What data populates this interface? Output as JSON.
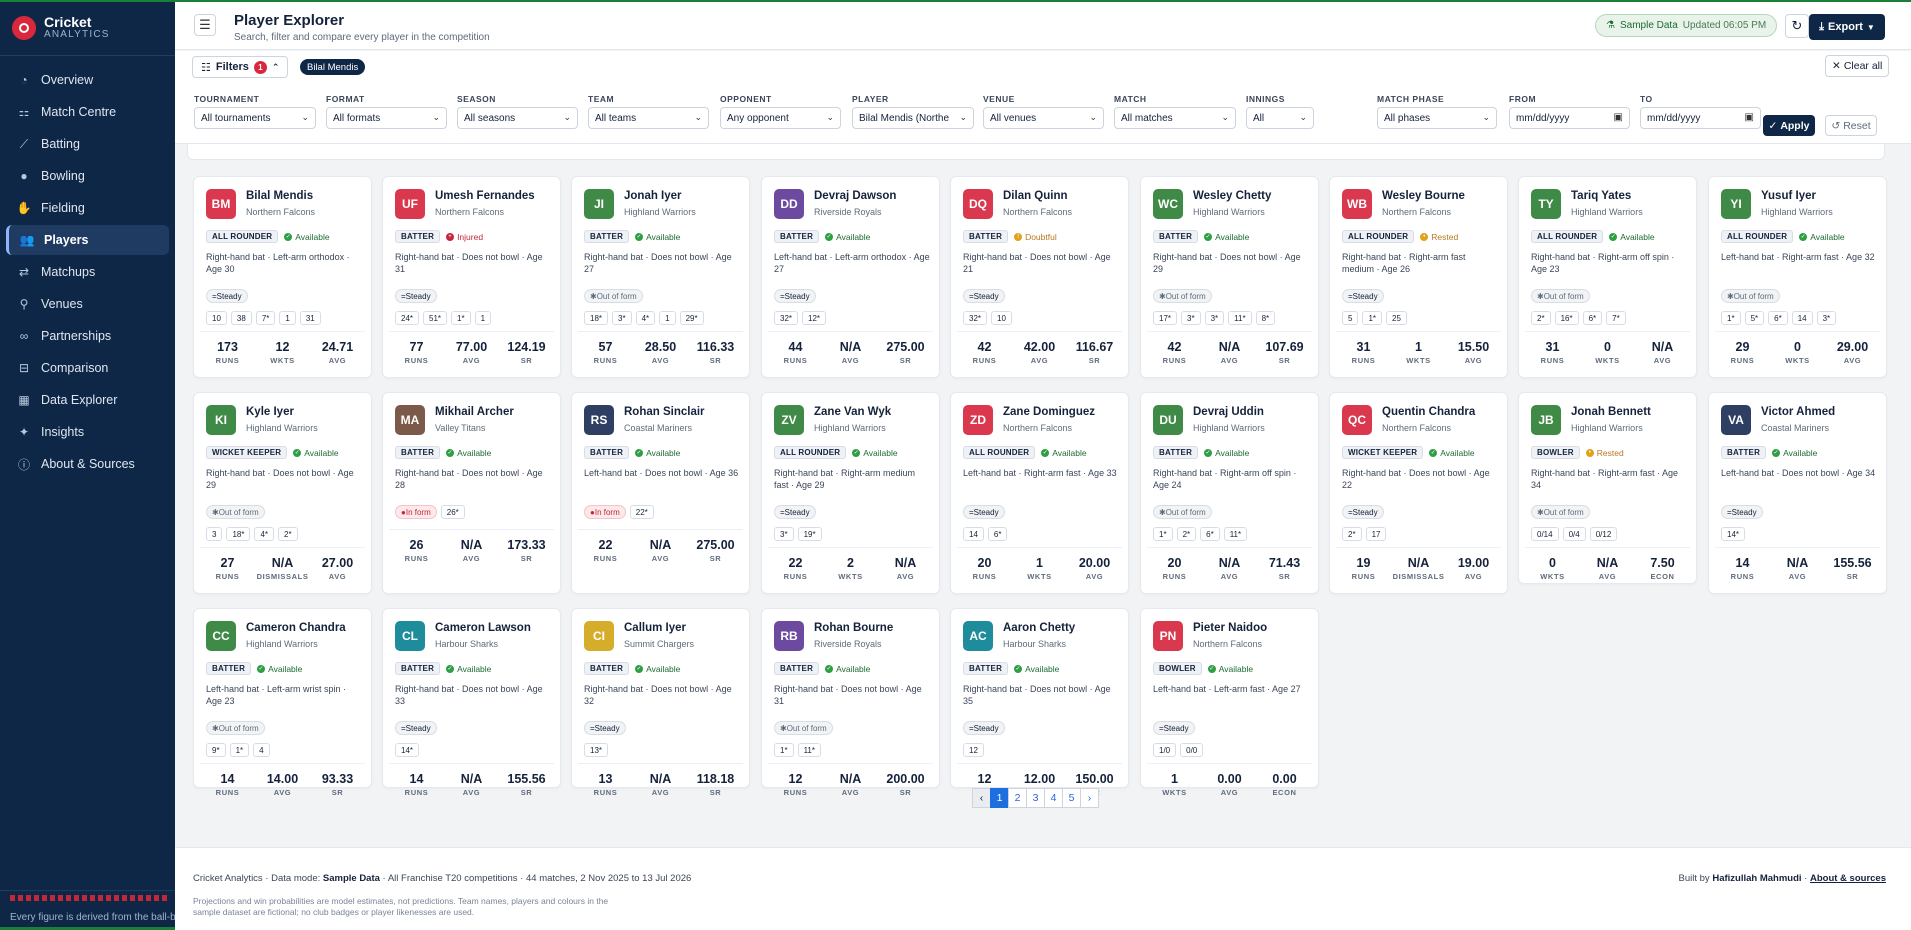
{
  "app": {
    "brand_name": "Cricket",
    "brand_sub": "ANALYTICS"
  },
  "sidebar": {
    "items": [
      {
        "label": "Overview",
        "icon": "gauge-icon",
        "glyph": "◔",
        "active": false
      },
      {
        "label": "Match Centre",
        "icon": "scoreboard-icon",
        "glyph": "⚏",
        "active": false
      },
      {
        "label": "Batting",
        "icon": "bat-icon",
        "glyph": "⟋",
        "active": false
      },
      {
        "label": "Bowling",
        "icon": "ball-icon",
        "glyph": "●",
        "active": false
      },
      {
        "label": "Fielding",
        "icon": "glove-icon",
        "glyph": "✋",
        "active": false
      },
      {
        "label": "Players",
        "icon": "users-icon",
        "glyph": "👥",
        "active": true
      },
      {
        "label": "Matchups",
        "icon": "versus-icon",
        "glyph": "⇄",
        "active": false
      },
      {
        "label": "Venues",
        "icon": "location-pin-icon",
        "glyph": "⚲",
        "active": false
      },
      {
        "label": "Partnerships",
        "icon": "link-icon",
        "glyph": "∞",
        "active": false
      },
      {
        "label": "Comparison",
        "icon": "compare-icon",
        "glyph": "⊟",
        "active": false
      },
      {
        "label": "Data Explorer",
        "icon": "table-icon",
        "glyph": "▦",
        "active": false
      },
      {
        "label": "Insights",
        "icon": "lightbulb-icon",
        "glyph": "✦",
        "active": false
      },
      {
        "label": "About & Sources",
        "icon": "info-icon",
        "glyph": "ⓘ",
        "active": false
      }
    ],
    "footer_text": "Every figure is derived from the ball-by-"
  },
  "header": {
    "title": "Player Explorer",
    "subtitle": "Search, filter and compare every player in the competition",
    "sample_label": "Sample Data",
    "updated": "Updated 06:05 PM",
    "export_label": "Export"
  },
  "filters": {
    "toggle_label": "Filters",
    "count": "1",
    "active_chip": "Bilal Mendis",
    "clear_label": "Clear all",
    "fields": [
      {
        "label": "TOURNAMENT",
        "value": "All tournaments",
        "type": "select"
      },
      {
        "label": "FORMAT",
        "value": "All formats",
        "type": "select"
      },
      {
        "label": "SEASON",
        "value": "All seasons",
        "type": "select"
      },
      {
        "label": "TEAM",
        "value": "All teams",
        "type": "select"
      },
      {
        "label": "OPPONENT",
        "value": "Any opponent",
        "type": "select"
      },
      {
        "label": "PLAYER",
        "value": "Bilal Mendis (Northe",
        "type": "select"
      },
      {
        "label": "VENUE",
        "value": "All venues",
        "type": "select"
      },
      {
        "label": "MATCH",
        "value": "All matches",
        "type": "select"
      },
      {
        "label": "INNINGS",
        "value": "All",
        "type": "select"
      },
      {
        "label": "MATCH PHASE",
        "value": "All phases",
        "type": "select"
      },
      {
        "label": "FROM",
        "value": "mm/dd/yyyy",
        "type": "date"
      },
      {
        "label": "TO",
        "value": "mm/dd/yyyy",
        "type": "date"
      }
    ],
    "apply_label": "Apply",
    "reset_label": "Reset"
  },
  "colors": {
    "sidebar": "#0f2747",
    "accent_red": "#d9283b",
    "accent_blue": "#1d6fe0",
    "available": "#2f9e44",
    "injured": "#c2283a",
    "caution": "#e0a21a"
  },
  "players": [
    {
      "initials": "BM",
      "name": "Bilal Mendis",
      "team": "Northern Falcons",
      "color": "#d9384f",
      "role": "ALL ROUNDER",
      "status": "Available",
      "desc": "Right-hand bat · Left-arm orthodox · Age 30",
      "form": "Steady",
      "tags": [
        "10",
        "38",
        "7*",
        "1",
        "31"
      ],
      "stats": [
        [
          "173",
          "RUNS"
        ],
        [
          "12",
          "WKTS"
        ],
        [
          "24.71",
          "AVG"
        ]
      ]
    },
    {
      "initials": "UF",
      "name": "Umesh Fernandes",
      "team": "Northern Falcons",
      "color": "#d9384f",
      "role": "BATTER",
      "status": "Injured",
      "desc": "Right-hand bat · Does not bowl · Age 31",
      "form": "Steady",
      "tags": [
        "24*",
        "51*",
        "1*",
        "1"
      ],
      "stats": [
        [
          "77",
          "RUNS"
        ],
        [
          "77.00",
          "AVG"
        ],
        [
          "124.19",
          "SR"
        ]
      ]
    },
    {
      "initials": "JI",
      "name": "Jonah Iyer",
      "team": "Highland Warriors",
      "color": "#3f8a46",
      "role": "BATTER",
      "status": "Available",
      "desc": "Right-hand bat · Does not bowl · Age 27",
      "form": "Out of form",
      "tags": [
        "18*",
        "3*",
        "4*",
        "1",
        "29*"
      ],
      "stats": [
        [
          "57",
          "RUNS"
        ],
        [
          "28.50",
          "AVG"
        ],
        [
          "116.33",
          "SR"
        ]
      ]
    },
    {
      "initials": "DD",
      "name": "Devraj Dawson",
      "team": "Riverside Royals",
      "color": "#6c4aa0",
      "role": "BATTER",
      "status": "Available",
      "desc": "Left-hand bat · Left-arm orthodox · Age 27",
      "form": "Steady",
      "tags": [
        "32*",
        "12*"
      ],
      "stats": [
        [
          "44",
          "RUNS"
        ],
        [
          "N/A",
          "AVG"
        ],
        [
          "275.00",
          "SR"
        ]
      ]
    },
    {
      "initials": "DQ",
      "name": "Dilan Quinn",
      "team": "Northern Falcons",
      "color": "#d9384f",
      "role": "BATTER",
      "status": "Doubtful",
      "desc": "Right-hand bat · Does not bowl · Age 21",
      "form": "Steady",
      "tags": [
        "32*",
        "10"
      ],
      "stats": [
        [
          "42",
          "RUNS"
        ],
        [
          "42.00",
          "AVG"
        ],
        [
          "116.67",
          "SR"
        ]
      ]
    },
    {
      "initials": "WC",
      "name": "Wesley Chetty",
      "team": "Highland Warriors",
      "color": "#3f8a46",
      "role": "BATTER",
      "status": "Available",
      "desc": "Right-hand bat · Does not bowl · Age 29",
      "form": "Out of form",
      "tags": [
        "17*",
        "3*",
        "3*",
        "11*",
        "8*"
      ],
      "stats": [
        [
          "42",
          "RUNS"
        ],
        [
          "N/A",
          "AVG"
        ],
        [
          "107.69",
          "SR"
        ]
      ]
    },
    {
      "initials": "WB",
      "name": "Wesley Bourne",
      "team": "Northern Falcons",
      "color": "#d9384f",
      "role": "ALL ROUNDER",
      "status": "Rested",
      "desc": "Right-hand bat · Right-arm fast medium · Age 26",
      "form": "Steady",
      "tags": [
        "5",
        "1*",
        "25"
      ],
      "stats": [
        [
          "31",
          "RUNS"
        ],
        [
          "1",
          "WKTS"
        ],
        [
          "15.50",
          "AVG"
        ]
      ]
    },
    {
      "initials": "TY",
      "name": "Tariq Yates",
      "team": "Highland Warriors",
      "color": "#3f8a46",
      "role": "ALL ROUNDER",
      "status": "Available",
      "desc": "Right-hand bat · Right-arm off spin · Age 23",
      "form": "Out of form",
      "tags": [
        "2*",
        "16*",
        "6*",
        "7*"
      ],
      "stats": [
        [
          "31",
          "RUNS"
        ],
        [
          "0",
          "WKTS"
        ],
        [
          "N/A",
          "AVG"
        ]
      ]
    },
    {
      "initials": "YI",
      "name": "Yusuf Iyer",
      "team": "Highland Warriors",
      "color": "#3f8a46",
      "role": "ALL ROUNDER",
      "status": "Available",
      "desc": "Left-hand bat · Right-arm fast · Age 32",
      "form": "Out of form",
      "tags": [
        "1*",
        "5*",
        "6*",
        "14",
        "3*"
      ],
      "stats": [
        [
          "29",
          "RUNS"
        ],
        [
          "0",
          "WKTS"
        ],
        [
          "29.00",
          "AVG"
        ]
      ]
    },
    {
      "initials": "KI",
      "name": "Kyle Iyer",
      "team": "Highland Warriors",
      "color": "#3f8a46",
      "role": "WICKET KEEPER",
      "status": "Available",
      "desc": "Right-hand bat · Does not bowl · Age 29",
      "form": "Out of form",
      "tags": [
        "3",
        "18*",
        "4*",
        "2*"
      ],
      "stats": [
        [
          "27",
          "RUNS"
        ],
        [
          "N/A",
          "DISMISSALS"
        ],
        [
          "27.00",
          "AVG"
        ]
      ]
    },
    {
      "initials": "MA",
      "name": "Mikhail Archer",
      "team": "Valley Titans",
      "color": "#7b5a4a",
      "role": "BATTER",
      "status": "Available",
      "desc": "Right-hand bat · Does not bowl · Age 28",
      "form": "In form",
      "tags": [
        "26*"
      ],
      "stats": [
        [
          "26",
          "RUNS"
        ],
        [
          "N/A",
          "AVG"
        ],
        [
          "173.33",
          "SR"
        ]
      ]
    },
    {
      "initials": "RS",
      "name": "Rohan Sinclair",
      "team": "Coastal Mariners",
      "color": "#2e3f63",
      "role": "BATTER",
      "status": "Available",
      "desc": "Left-hand bat · Does not bowl · Age 36",
      "form": "In form",
      "tags": [
        "22*"
      ],
      "stats": [
        [
          "22",
          "RUNS"
        ],
        [
          "N/A",
          "AVG"
        ],
        [
          "275.00",
          "SR"
        ]
      ]
    },
    {
      "initials": "ZV",
      "name": "Zane Van Wyk",
      "team": "Highland Warriors",
      "color": "#3f8a46",
      "role": "ALL ROUNDER",
      "status": "Available",
      "desc": "Right-hand bat · Right-arm medium fast · Age 29",
      "form": "Steady",
      "tags": [
        "3*",
        "19*"
      ],
      "stats": [
        [
          "22",
          "RUNS"
        ],
        [
          "2",
          "WKTS"
        ],
        [
          "N/A",
          "AVG"
        ]
      ]
    },
    {
      "initials": "ZD",
      "name": "Zane Dominguez",
      "team": "Northern Falcons",
      "color": "#d9384f",
      "role": "ALL ROUNDER",
      "status": "Available",
      "desc": "Left-hand bat · Right-arm fast · Age 33",
      "form": "Steady",
      "tags": [
        "14",
        "6*"
      ],
      "stats": [
        [
          "20",
          "RUNS"
        ],
        [
          "1",
          "WKTS"
        ],
        [
          "20.00",
          "AVG"
        ]
      ]
    },
    {
      "initials": "DU",
      "name": "Devraj Uddin",
      "team": "Highland Warriors",
      "color": "#3f8a46",
      "role": "BATTER",
      "status": "Available",
      "desc": "Right-hand bat · Right-arm off spin · Age 24",
      "form": "Out of form",
      "tags": [
        "1*",
        "2*",
        "6*",
        "11*"
      ],
      "stats": [
        [
          "20",
          "RUNS"
        ],
        [
          "N/A",
          "AVG"
        ],
        [
          "71.43",
          "SR"
        ]
      ]
    },
    {
      "initials": "QC",
      "name": "Quentin Chandra",
      "team": "Northern Falcons",
      "color": "#d9384f",
      "role": "WICKET KEEPER",
      "status": "Available",
      "desc": "Right-hand bat · Does not bowl · Age 22",
      "form": "Steady",
      "tags": [
        "2*",
        "17"
      ],
      "stats": [
        [
          "19",
          "RUNS"
        ],
        [
          "N/A",
          "DISMISSALS"
        ],
        [
          "19.00",
          "AVG"
        ]
      ]
    },
    {
      "initials": "JB",
      "name": "Jonah Bennett",
      "team": "Highland Warriors",
      "color": "#3f8a46",
      "role": "BOWLER",
      "status": "Rested",
      "desc": "Right-hand bat · Right-arm fast · Age 34",
      "form": "Out of form",
      "tags": [
        "0/14",
        "0/4",
        "0/12"
      ],
      "stats": [
        [
          "0",
          "WKTS"
        ],
        [
          "N/A",
          "AVG"
        ],
        [
          "7.50",
          "ECON"
        ]
      ]
    },
    {
      "initials": "VA",
      "name": "Victor Ahmed",
      "team": "Coastal Mariners",
      "color": "#2e3f63",
      "role": "BATTER",
      "status": "Available",
      "desc": "Left-hand bat · Does not bowl · Age 34",
      "form": "Steady",
      "tags": [
        "14*"
      ],
      "stats": [
        [
          "14",
          "RUNS"
        ],
        [
          "N/A",
          "AVG"
        ],
        [
          "155.56",
          "SR"
        ]
      ]
    },
    {
      "initials": "CC",
      "name": "Cameron Chandra",
      "team": "Highland Warriors",
      "color": "#3f8a46",
      "role": "BATTER",
      "status": "Available",
      "desc": "Left-hand bat · Left-arm wrist spin · Age 23",
      "form": "Out of form",
      "tags": [
        "9*",
        "1*",
        "4"
      ],
      "stats": [
        [
          "14",
          "RUNS"
        ],
        [
          "14.00",
          "AVG"
        ],
        [
          "93.33",
          "SR"
        ]
      ]
    },
    {
      "initials": "CL",
      "name": "Cameron Lawson",
      "team": "Harbour Sharks",
      "color": "#1f8c9c",
      "role": "BATTER",
      "status": "Available",
      "desc": "Right-hand bat · Does not bowl · Age 33",
      "form": "Steady",
      "tags": [
        "14*"
      ],
      "stats": [
        [
          "14",
          "RUNS"
        ],
        [
          "N/A",
          "AVG"
        ],
        [
          "155.56",
          "SR"
        ]
      ]
    },
    {
      "initials": "CI",
      "name": "Callum Iyer",
      "team": "Summit Chargers",
      "color": "#d6ad2a",
      "role": "BATTER",
      "status": "Available",
      "desc": "Right-hand bat · Does not bowl · Age 32",
      "form": "Steady",
      "tags": [
        "13*"
      ],
      "stats": [
        [
          "13",
          "RUNS"
        ],
        [
          "N/A",
          "AVG"
        ],
        [
          "118.18",
          "SR"
        ]
      ]
    },
    {
      "initials": "RB",
      "name": "Rohan Bourne",
      "team": "Riverside Royals",
      "color": "#6c4aa0",
      "role": "BATTER",
      "status": "Available",
      "desc": "Right-hand bat · Does not bowl · Age 31",
      "form": "Out of form",
      "tags": [
        "1*",
        "11*"
      ],
      "stats": [
        [
          "12",
          "RUNS"
        ],
        [
          "N/A",
          "AVG"
        ],
        [
          "200.00",
          "SR"
        ]
      ]
    },
    {
      "initials": "AC",
      "name": "Aaron Chetty",
      "team": "Harbour Sharks",
      "color": "#1f8c9c",
      "role": "BATTER",
      "status": "Available",
      "desc": "Right-hand bat · Does not bowl · Age 35",
      "form": "Steady",
      "tags": [
        "12"
      ],
      "stats": [
        [
          "12",
          "RUNS"
        ],
        [
          "12.00",
          "AVG"
        ],
        [
          "150.00",
          "SR"
        ]
      ]
    },
    {
      "initials": "PN",
      "name": "Pieter Naidoo",
      "team": "Northern Falcons",
      "color": "#d9384f",
      "role": "BOWLER",
      "status": "Available",
      "desc": "Left-hand bat · Left-arm fast · Age 27",
      "form": "Steady",
      "tags": [
        "1/0",
        "0/0"
      ],
      "stats": [
        [
          "1",
          "WKTS"
        ],
        [
          "0.00",
          "AVG"
        ],
        [
          "0.00",
          "ECON"
        ]
      ]
    }
  ],
  "pagination": {
    "pages": [
      "1",
      "2",
      "3",
      "4",
      "5"
    ],
    "current": "1"
  },
  "footer": {
    "prefix": "Cricket Analytics · Data mode: ",
    "mode": "Sample Data",
    "suffix": " · All Franchise T20 competitions · 44 matches, 2 Nov 2025 to 13 Jul 2026",
    "note": "Projections and win probabilities are model estimates, not predictions. Team names, players and colours in the sample dataset are fictional; no club badges or player likenesses are used.",
    "built_by": "Built by ",
    "author": "Hafizullah Mahmudi",
    "about_link": "About & sources"
  }
}
